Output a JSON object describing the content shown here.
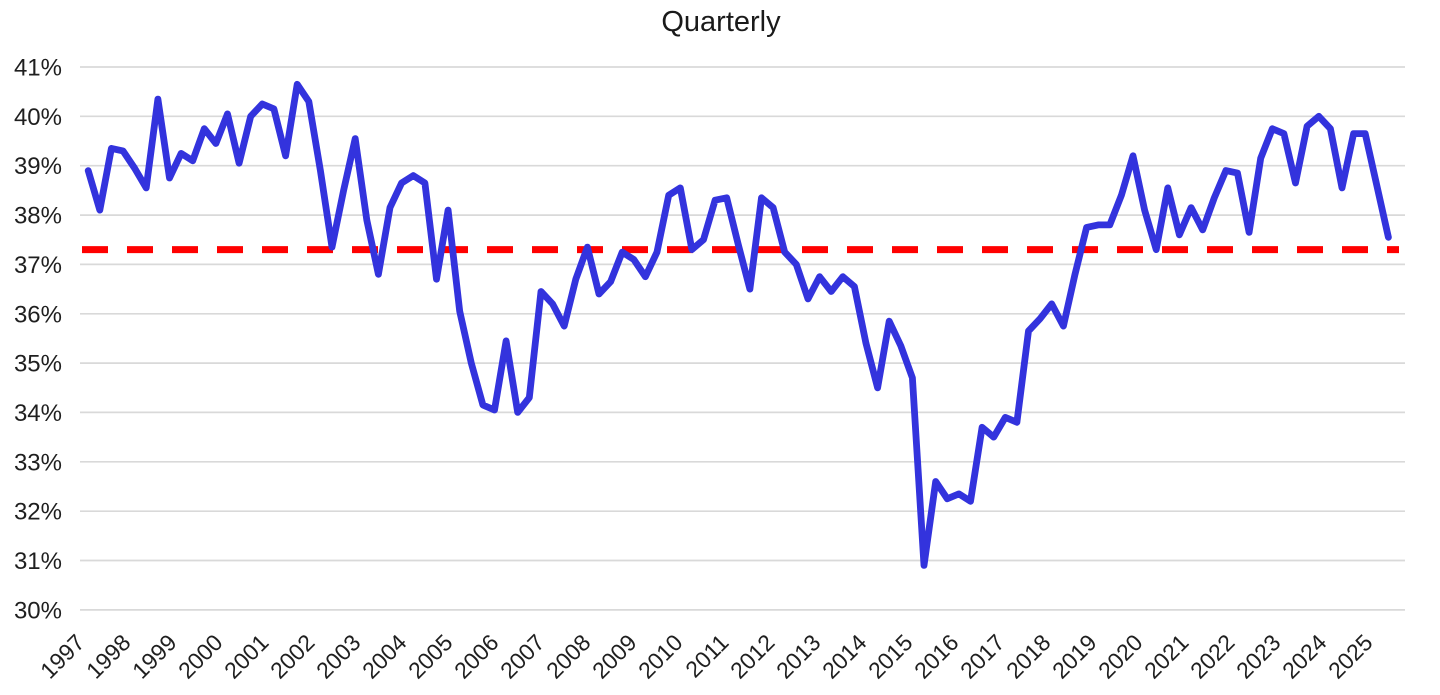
{
  "chart_data": {
    "type": "line",
    "title": "Quarterly",
    "x_frequency": "quarterly",
    "x_start": "1997 Q1",
    "x_end": "2025 Q1",
    "x_tick_labels": [
      "1997",
      "1998",
      "1999",
      "2000",
      "2001",
      "2002",
      "2003",
      "2004",
      "2005",
      "2006",
      "2007",
      "2008",
      "2009",
      "2010",
      "2011",
      "2012",
      "2013",
      "2014",
      "2015",
      "2016",
      "2017",
      "2018",
      "2019",
      "2020",
      "2021",
      "2022",
      "2023",
      "2024",
      "2025"
    ],
    "y_tick_labels": [
      "41%",
      "40%",
      "39%",
      "38%",
      "37%",
      "36%",
      "35%",
      "34%",
      "33%",
      "32%",
      "31%",
      "30%"
    ],
    "ylim": [
      30,
      41
    ],
    "y_tick_step": 1,
    "y_format": "percent",
    "grid": "horizontal",
    "legend": "none",
    "series": [
      {
        "name": "quarterly-values",
        "color": "#3333DD",
        "values": [
          38.9,
          38.1,
          39.35,
          39.3,
          38.95,
          38.55,
          40.35,
          38.75,
          39.25,
          39.1,
          39.75,
          39.45,
          40.05,
          39.05,
          40.0,
          40.25,
          40.15,
          39.2,
          40.65,
          40.3,
          38.9,
          37.35,
          38.5,
          39.55,
          37.9,
          36.8,
          38.15,
          38.65,
          38.8,
          38.65,
          36.7,
          38.1,
          36.05,
          35.0,
          34.15,
          34.05,
          35.45,
          34.0,
          34.3,
          36.45,
          36.2,
          35.75,
          36.7,
          37.35,
          36.4,
          36.65,
          37.25,
          37.1,
          36.75,
          37.25,
          38.4,
          38.55,
          37.3,
          37.5,
          38.3,
          38.35,
          37.4,
          36.5,
          38.35,
          38.15,
          37.25,
          37.0,
          36.3,
          36.75,
          36.45,
          36.75,
          36.55,
          35.4,
          34.5,
          35.85,
          35.35,
          34.7,
          30.9,
          32.6,
          32.25,
          32.35,
          32.2,
          33.7,
          33.5,
          33.9,
          33.8,
          35.65,
          35.9,
          36.2,
          35.75,
          36.8,
          37.75,
          37.8,
          37.8,
          38.4,
          39.2,
          38.1,
          37.3,
          38.55,
          37.6,
          38.15,
          37.7,
          38.35,
          38.9,
          38.85,
          37.65,
          39.15,
          39.75,
          39.65,
          38.65,
          39.8,
          40.0,
          39.75,
          38.55,
          39.65,
          39.65,
          38.6,
          37.55
        ]
      }
    ],
    "reference_line": {
      "value": 37.3,
      "color": "#FF0000",
      "style": "dashed"
    },
    "colors": {
      "series_line": "#3333DD",
      "reference_line": "#FF0000",
      "gridline": "#D9D9D9",
      "text": "#1f1f1f",
      "background": "#FFFFFF"
    }
  }
}
